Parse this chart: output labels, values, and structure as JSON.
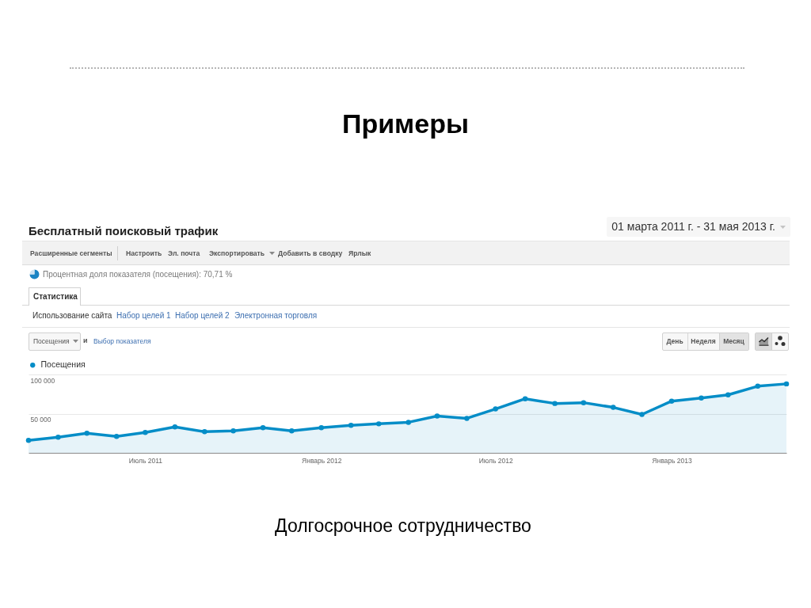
{
  "chart_data": {
    "type": "area",
    "title": "Бесплатный поисковый трафик",
    "subtitle": "01 марта 2011 г. - 31 мая 2013 г.",
    "annotations": [
      "Примеры",
      "Расширенные сегменты",
      "Настроить",
      "Эл. почта",
      "Экспортировать",
      "Добавить в сводку",
      "Ярлык",
      "Процентная доля показателя (посещения): 70,71 %",
      "Статистика",
      "Использование сайта",
      "Набор целей 1",
      "Набор целей 2",
      "Электронная торговля",
      "Посещения",
      "и",
      "Выбор показателя",
      "День",
      "Неделя",
      "Месяц",
      "Долгосрочное сотрудничество"
    ],
    "x": [
      "2011-03",
      "2011-04",
      "2011-05",
      "2011-06",
      "2011-07",
      "2011-08",
      "2011-09",
      "2011-10",
      "2011-11",
      "2011-12",
      "2012-01",
      "2012-02",
      "2012-03",
      "2012-04",
      "2012-05",
      "2012-06",
      "2012-07",
      "2012-08",
      "2012-09",
      "2012-10",
      "2012-11",
      "2012-12",
      "2013-01",
      "2013-02",
      "2013-03",
      "2013-04",
      "2013-05"
    ],
    "series": [
      {
        "name": "Посещения",
        "color": "#058dc7",
        "values": [
          16000,
          20000,
          25000,
          21000,
          26000,
          33000,
          27000,
          28000,
          32000,
          28000,
          32000,
          35000,
          37000,
          39000,
          47000,
          44000,
          56000,
          69000,
          63000,
          64000,
          58000,
          49000,
          66000,
          70000,
          74000,
          85000,
          88000
        ]
      }
    ],
    "xlim": [
      "2011-03",
      "2013-05"
    ],
    "xticks": [
      {
        "value": "2011-07",
        "label": "Июль 2011"
      },
      {
        "value": "2012-01",
        "label": "Январь 2012"
      },
      {
        "value": "2012-07",
        "label": "Июль 2012"
      },
      {
        "value": "2013-01",
        "label": "Январь 2013"
      }
    ],
    "ylim": [
      0,
      100000
    ],
    "yticks": [
      {
        "value": 50000,
        "label": "50 000"
      },
      {
        "value": 100000,
        "label": "100 000"
      }
    ],
    "grid": "y",
    "legend": "top left",
    "marker": "circle"
  }
}
